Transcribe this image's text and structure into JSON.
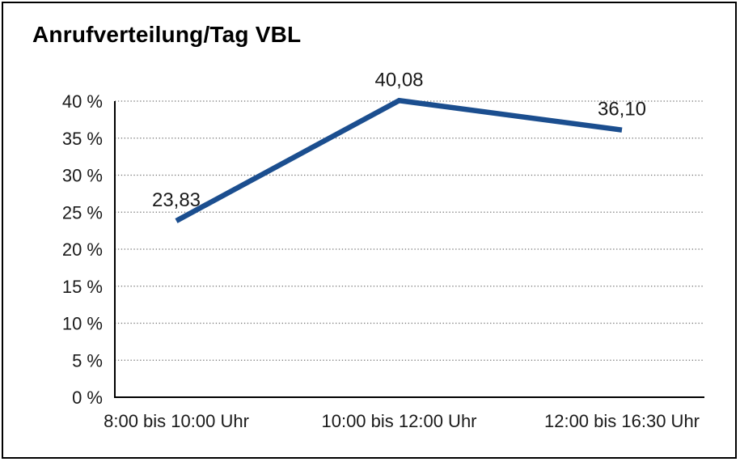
{
  "window": {
    "background": "#ffffff",
    "frame_border_color": "#000000"
  },
  "chart_data": {
    "type": "line",
    "title": "Anrufverteilung/Tag VBL",
    "categories": [
      "8:00 bis 10:00 Uhr",
      "10:00 bis 12:00 Uhr",
      "12:00 bis 16:30 Uhr"
    ],
    "values": [
      23.83,
      40.08,
      36.1
    ],
    "data_labels": [
      "23,83",
      "40,08",
      "36,10"
    ],
    "xlabel": "",
    "ylabel": "",
    "ylim": [
      0,
      40
    ],
    "ytick_step": 5,
    "ytick_labels": [
      "0 %",
      "5 %",
      "10 %",
      "15 %",
      "20 %",
      "25 %",
      "30 %",
      "35 %",
      "40 %"
    ],
    "grid": "horizontal-dotted",
    "legend": "none",
    "line_color": "#1b4e8f",
    "axis_color": "#000000",
    "grid_color": "#707070",
    "label_color": "#1a1a1a"
  }
}
